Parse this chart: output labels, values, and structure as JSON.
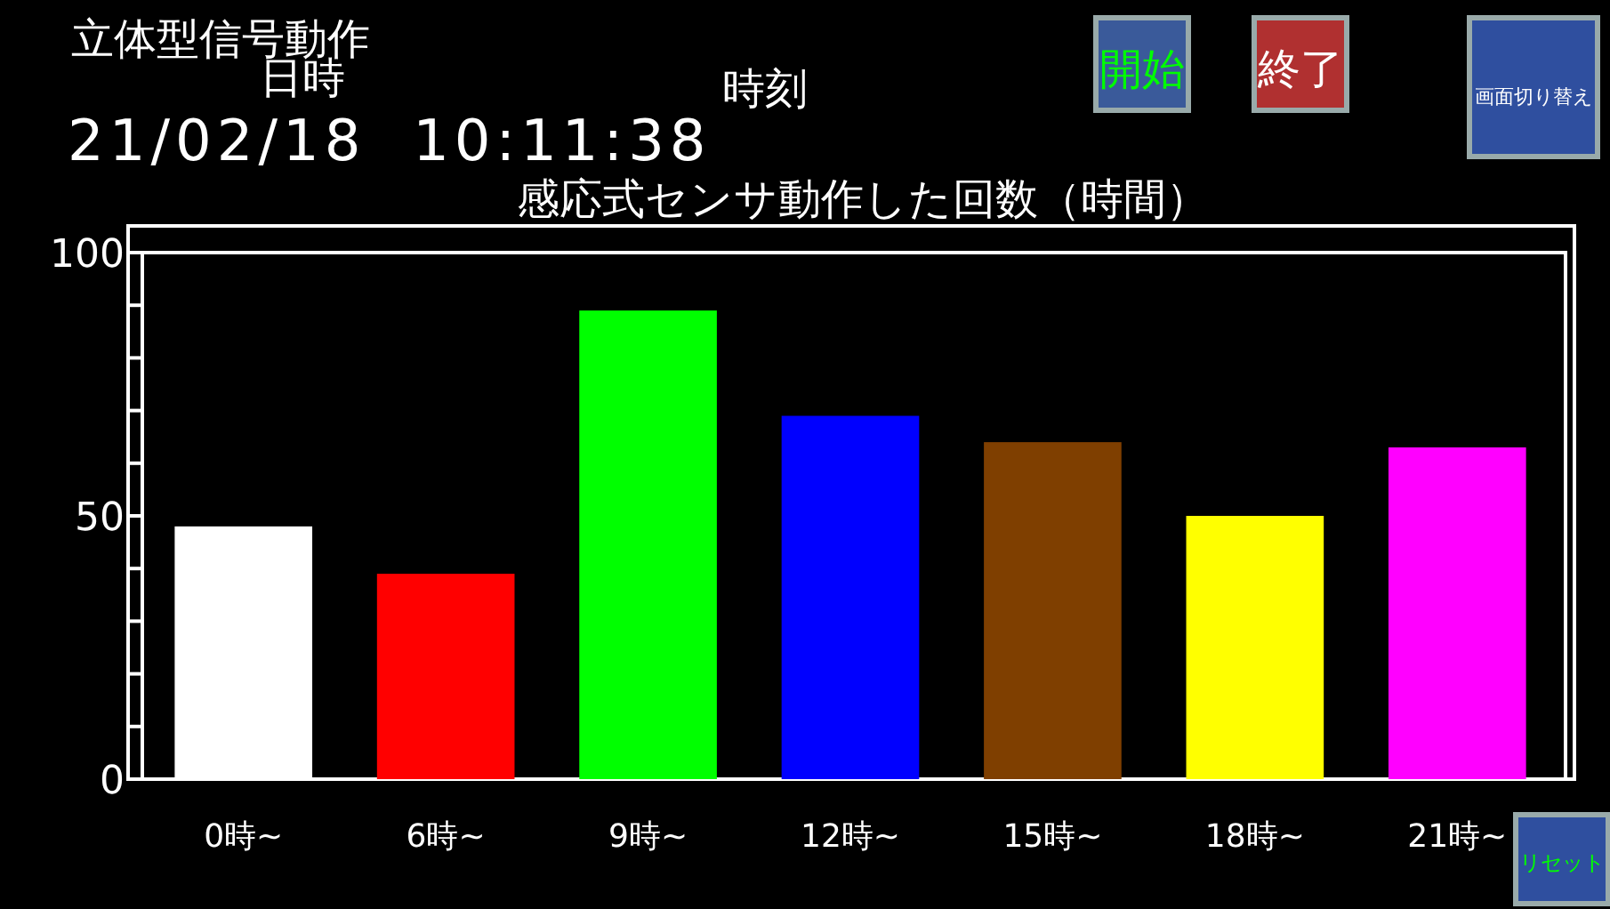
{
  "chart_data": {
    "type": "bar",
    "title": "感応式センサ動作した回数（時間）",
    "annotations": [
      "立体型信号動作",
      "日時",
      "時刻",
      "21/02/18  10:11:38",
      "開始",
      "終了",
      "画面切り替え",
      "リセット"
    ],
    "categories": [
      "0時~",
      "6時~",
      "9時~",
      "12時~",
      "15時~",
      "18時~",
      "21時~"
    ],
    "values": [
      48,
      39,
      89,
      69,
      64,
      50,
      63
    ],
    "colors": [
      "#ffffff",
      "#ff0000",
      "#00ff00",
      "#0000ff",
      "#7f3f00",
      "#ffff00",
      "#ff00ff"
    ],
    "ylim": [
      0,
      100
    ],
    "yticks": [
      0,
      {
        "value": 10,
        "label": null
      },
      {
        "value": 20,
        "label": null
      },
      {
        "value": 30,
        "label": null
      },
      {
        "value": 40,
        "label": null
      },
      50,
      {
        "value": 60,
        "label": null
      },
      {
        "value": 70,
        "label": null
      },
      {
        "value": 80,
        "label": null
      },
      {
        "value": 90,
        "label": null
      },
      100
    ]
  }
}
